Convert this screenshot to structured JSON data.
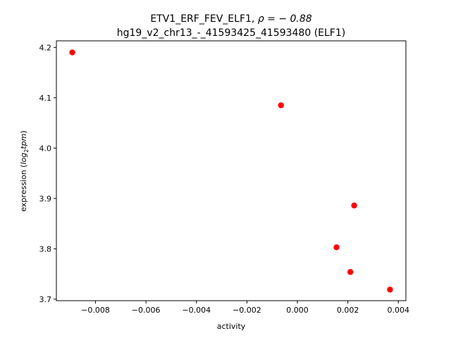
{
  "chart_data": {
    "type": "scatter",
    "title_line1_prefix": "ETV1_ERF_FEV_ELF1, ",
    "title_line1_rho": "ρ = − 0.88",
    "title_line2": "hg19_v2_chr13_-_41593425_41593480 (ELF1)",
    "xlabel": "activity",
    "ylabel_prefix": "expression (",
    "ylabel_math": "log",
    "ylabel_sub": "2",
    "ylabel_math2": "tpm",
    "ylabel_suffix": ")",
    "xlim": [
      -0.00955,
      0.0043
    ],
    "ylim": [
      3.697,
      4.213
    ],
    "xticks": [
      -0.008,
      -0.006,
      -0.004,
      -0.002,
      0.0,
      0.002,
      0.004
    ],
    "xtick_labels": [
      "−0.008",
      "−0.006",
      "−0.004",
      "−0.002",
      "0.000",
      "0.002",
      "0.004"
    ],
    "yticks": [
      3.7,
      3.8,
      3.9,
      4.0,
      4.1,
      4.2
    ],
    "ytick_labels": [
      "3.7",
      "3.8",
      "3.9",
      "4.0",
      "4.1",
      "4.2"
    ],
    "marker_color": "#ff0000",
    "grid": false,
    "points": [
      {
        "x": -0.00892,
        "y": 4.19
      },
      {
        "x": -0.00065,
        "y": 4.085
      },
      {
        "x": 0.00225,
        "y": 3.886
      },
      {
        "x": 0.00155,
        "y": 3.803
      },
      {
        "x": 0.0021,
        "y": 3.754
      },
      {
        "x": 0.00367,
        "y": 3.719
      }
    ]
  }
}
